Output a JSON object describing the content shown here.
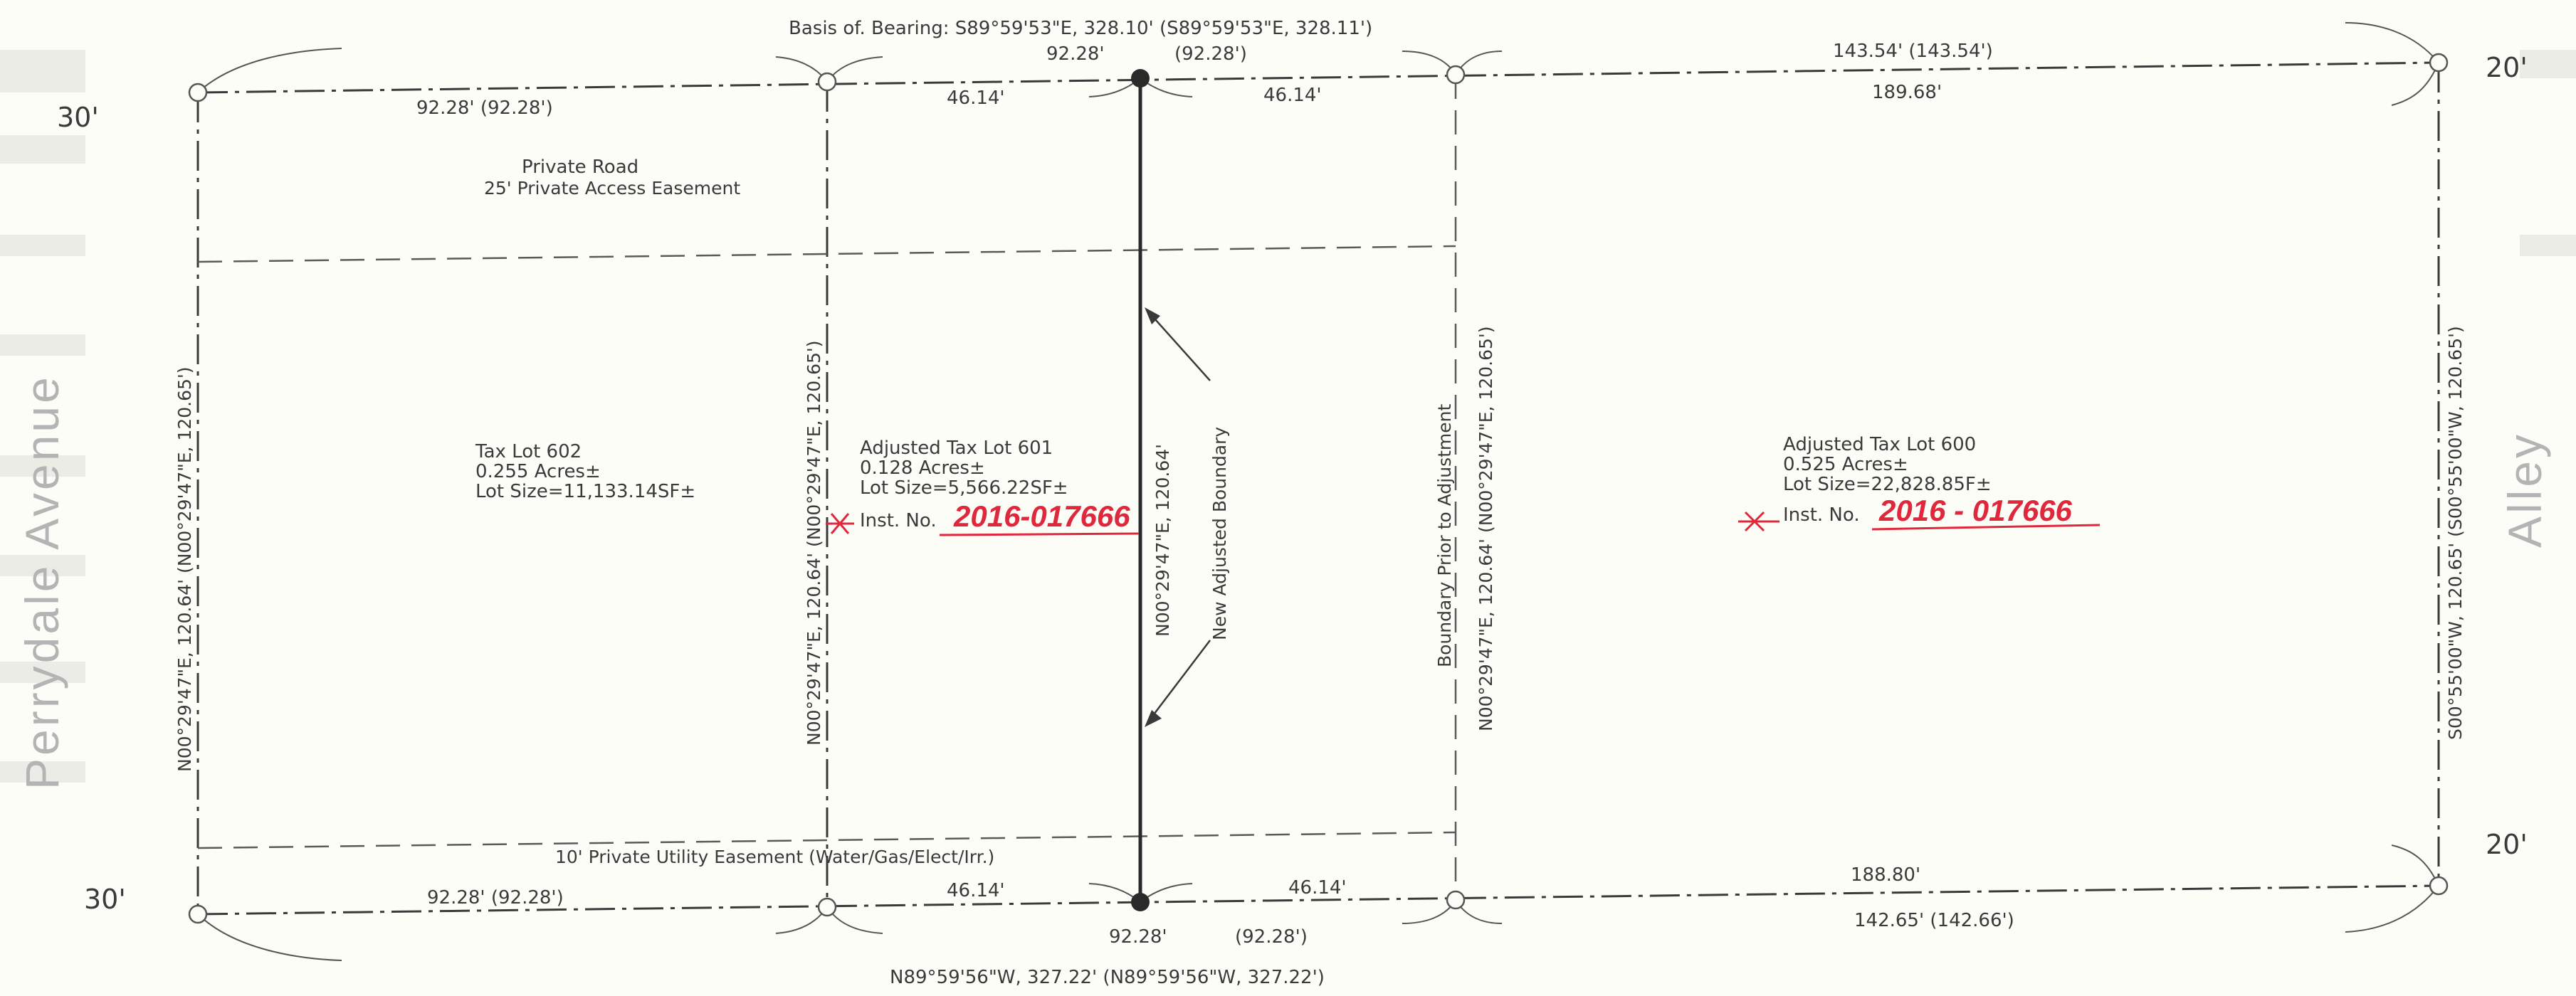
{
  "streets": {
    "west": "Perrydale Avenue",
    "east": "Alley"
  },
  "widths": {
    "nw": "30'",
    "sw": "30'",
    "ne": "20'",
    "se": "20'"
  },
  "basis_of_bearing": "Basis of. Bearing:  S89°59'53\"E, 328.10' (S89°59'53\"E, 328.11')",
  "north_line": {
    "seg1": "92.28' (92.28')",
    "seg2_top": "92.28'",
    "seg2_paren": "(92.28')",
    "seg2_left": "46.14'",
    "seg2_right": "46.14'",
    "seg3_top": "143.54' (143.54')",
    "seg3_bottom": "189.68'"
  },
  "south_line": {
    "seg1": "92.28' (92.28')",
    "seg2_left": "46.14'",
    "seg2_right": "46.14'",
    "seg2_bottom": "92.28'",
    "seg2_paren": "(92.28')",
    "seg3_top": "188.80'",
    "seg3_bottom": "142.65' (142.66')",
    "bearing": "N89°59'56\"W, 327.22' (N89°59'56\"W, 327.22')"
  },
  "vertical_labels": {
    "west_line": "N00°29'47\"E, 120.64' (N00°29'47\"E, 120.65')",
    "lot601_west": "N00°29'47\"E, 120.64' (N00°29'47\"E, 120.65')",
    "new_boundary": "N00°29'47\"E, 120.64'",
    "new_boundary_note": "New Adjusted Boundary",
    "prior_boundary_note": "Boundary Prior to Adjustment",
    "prior_boundary": "N00°29'47\"E, 120.64' (N00°29'47\"E, 120.65')",
    "east_line": "S00°55'00\"W, 120.65' (S00°55'00\"W, 120.65')"
  },
  "private_road": {
    "line1": "Private Road",
    "line2": "25' Private Access Easement"
  },
  "utility_easement": "10' Private Utility Easement (Water/Gas/Elect/Irr.)",
  "lots": [
    {
      "name": "Tax Lot 602",
      "acres": "0.255 Acres±",
      "size": "Lot Size=11,133.14SF±"
    },
    {
      "name": "Adjusted Tax Lot 601",
      "acres": "0.128 Acres±",
      "size": "Lot Size=5,566.22SF±",
      "inst": "Inst. No.",
      "inst_hand": "2016-017666"
    },
    {
      "name": "Adjusted Tax Lot 600",
      "acres": "0.525 Acres±",
      "size": "Lot Size=22,828.85F±",
      "inst": "Inst. No.",
      "inst_hand": "2016 - 017666"
    }
  ],
  "colors": {
    "ink": "#3a3a3a",
    "handwriting": "#e0283c",
    "street_label": "#b4b4b4",
    "paper": "#fdfdf8"
  }
}
